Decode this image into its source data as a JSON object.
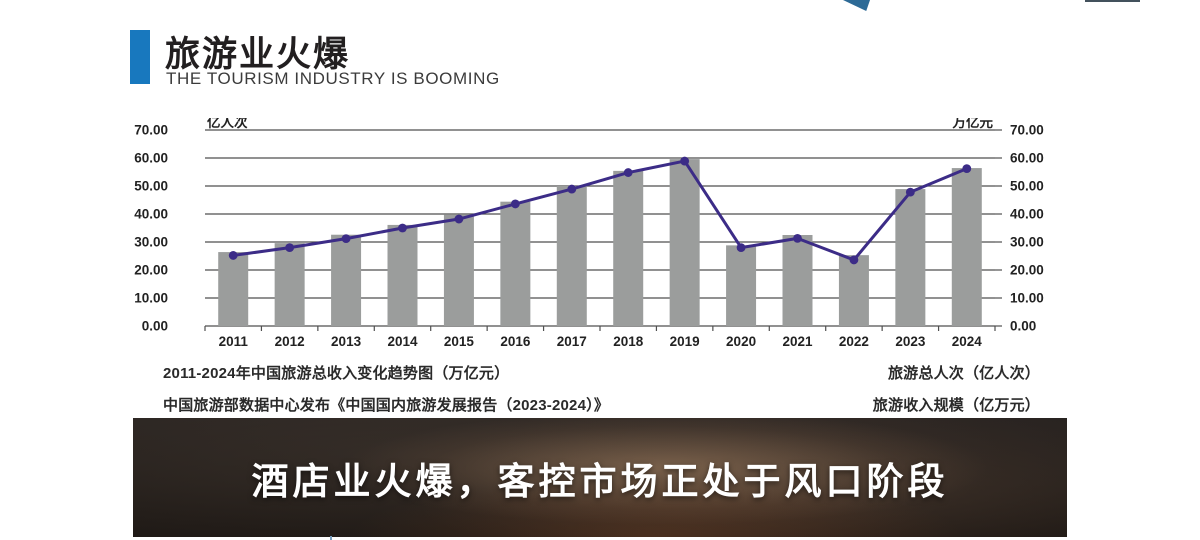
{
  "header": {
    "title": "旅游业火爆",
    "subtitle": "THE TOURISM INDUSTRY IS BOOMING"
  },
  "chart_data": {
    "type": "bar",
    "title": "2011-2024年中国旅游总收入变化趋势图（万亿元）",
    "categories": [
      "2011",
      "2012",
      "2013",
      "2014",
      "2015",
      "2016",
      "2017",
      "2018",
      "2019",
      "2020",
      "2021",
      "2022",
      "2023",
      "2024"
    ],
    "series": [
      {
        "name": "旅游总人次（亿人次）",
        "type": "bar",
        "values": [
          26.4,
          29.6,
          32.6,
          36.1,
          39.9,
          44.4,
          50.0,
          55.4,
          59.6,
          28.8,
          32.5,
          25.3,
          48.9,
          56.4
        ]
      },
      {
        "name": "旅游收入规模（亿万元）",
        "type": "line",
        "values": [
          25.2,
          28.0,
          31.2,
          35.0,
          38.2,
          43.6,
          48.9,
          54.8,
          58.9,
          28.0,
          31.3,
          23.6,
          47.8,
          56.2
        ]
      }
    ],
    "left_axis_unit": "亿人次",
    "right_axis_unit": "万亿元",
    "ylim": [
      0,
      70
    ],
    "ytick_labels": [
      "0.00",
      "10.00",
      "20.00",
      "30.00",
      "40.00",
      "50.00",
      "60.00",
      "70.00"
    ],
    "grid": true,
    "legend_position": "bottom-right"
  },
  "captions": {
    "source_line1": "2011-2024年中国旅游总收入变化趋势图（万亿元）",
    "source_line2": "中国旅游部数据中心发布《中国国内旅游发展报告（2023-2024）》",
    "legend_line1": "旅游总人次（亿人次）",
    "legend_line2": "旅游收入规模（亿万元）"
  },
  "banner": {
    "text": "酒店业火爆，客控市场正处于风口阶段"
  },
  "colors": {
    "accent_blue": "#1878be",
    "logo_blue": "#2d6a96",
    "bar_gray": "#9b9d9c",
    "line_purple": "#3c2c87",
    "grid_gray": "#4f4f4f",
    "axis_text": "#222222"
  }
}
